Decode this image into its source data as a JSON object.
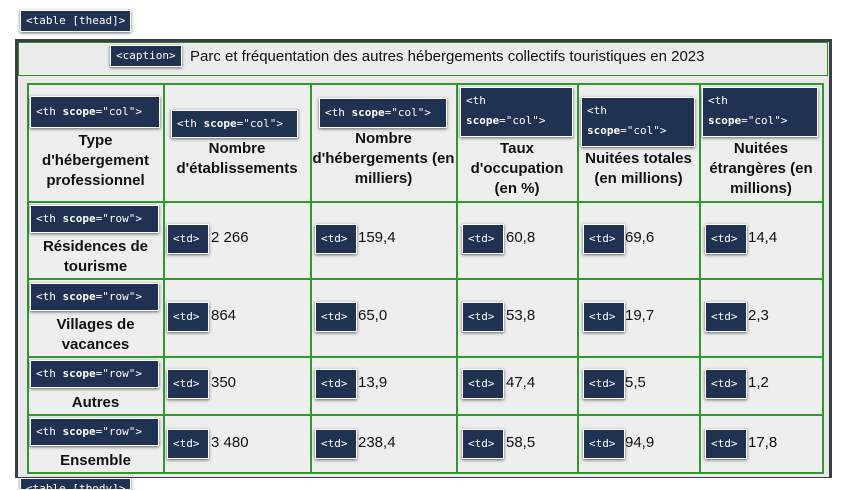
{
  "tags": {
    "table_thead": "<table [thead]>",
    "caption": "<caption>",
    "th_col_prefix": "<th ",
    "th_row_prefix": "<th ",
    "scope_attr": "scope",
    "col_value": "=\"col\">",
    "row_value": "=\"row\">",
    "td": "<td>",
    "table_tbody_partial": "<table [tbody]>"
  },
  "caption": "Parc et fréquentation des autres hébergements collectifs touristiques en 2023",
  "headers": [
    "Type d'hébergement professionnel",
    "Nombre d'établissements",
    "Nombre d'hébergements (en milliers)",
    "Taux d'occupation (en %)",
    "Nuitées totales (en millions)",
    "Nuitées étrangères (en millions)"
  ],
  "rows": [
    {
      "label": "Résidences de tourisme",
      "cells": [
        "2 266",
        "159,4",
        "60,8",
        "69,6",
        "14,4"
      ]
    },
    {
      "label": "Villages de vacances",
      "cells": [
        "864",
        "65,0",
        "53,8",
        "19,7",
        "2,3"
      ]
    },
    {
      "label": "Autres",
      "cells": [
        "350",
        "13,9",
        "47,4",
        "5,5",
        "1,2"
      ]
    },
    {
      "label": "Ensemble",
      "cells": [
        "3 480",
        "238,4",
        "58,5",
        "94,9",
        "17,8"
      ]
    }
  ],
  "colors": {
    "tag_bg": "#1f3252",
    "border_green": "#2e9a2e",
    "frame": "#3a3f47"
  }
}
